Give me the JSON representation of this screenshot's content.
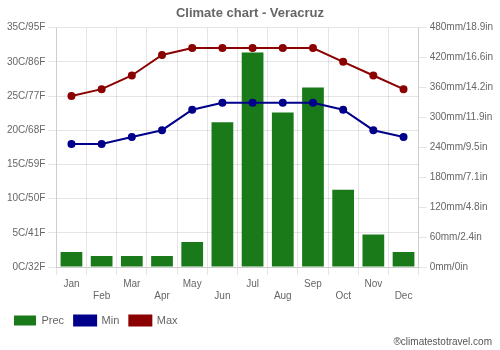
{
  "chart_data": {
    "type": "bar",
    "title": "Climate chart - Veracruz",
    "categories": [
      "Jan",
      "Feb",
      "Mar",
      "Apr",
      "May",
      "Jun",
      "Jul",
      "Aug",
      "Sep",
      "Oct",
      "Nov",
      "Dec"
    ],
    "series": [
      {
        "name": "Prec",
        "type": "bar",
        "color": "#1a7a1a",
        "axis": "y2",
        "values": [
          30,
          22,
          22,
          22,
          50,
          290,
          430,
          310,
          360,
          155,
          65,
          30
        ]
      },
      {
        "name": "Min",
        "type": "line",
        "color": "#00008B",
        "marker": "circle",
        "values": [
          18,
          18,
          19,
          20,
          23,
          24,
          24,
          24,
          24,
          23,
          20,
          19
        ]
      },
      {
        "name": "Max",
        "type": "line",
        "color": "#8B0000",
        "marker": "circle",
        "values": [
          25,
          26,
          28,
          31,
          32,
          32,
          32,
          32,
          32,
          30,
          28,
          26
        ]
      }
    ],
    "ylim": [
      0,
      35
    ],
    "yticks": [
      {
        "value": 0,
        "label": "0C/32F"
      },
      {
        "value": 5,
        "label": "5C/41F"
      },
      {
        "value": 10,
        "label": "10C/50F"
      },
      {
        "value": 15,
        "label": "15C/59F"
      },
      {
        "value": 20,
        "label": "20C/68F"
      },
      {
        "value": 25,
        "label": "25C/77F"
      },
      {
        "value": 30,
        "label": "30C/86F"
      },
      {
        "value": 35,
        "label": "35C/95F"
      }
    ],
    "y2lim": [
      0,
      480
    ],
    "y2ticks": [
      {
        "value": 0,
        "label": "0mm/0in"
      },
      {
        "value": 60,
        "label": "60mm/2.4in"
      },
      {
        "value": 120,
        "label": "120mm/4.8in"
      },
      {
        "value": 180,
        "label": "180mm/7.1in"
      },
      {
        "value": 240,
        "label": "240mm/9.5in"
      },
      {
        "value": 300,
        "label": "300mm/11.9in"
      },
      {
        "value": 360,
        "label": "360mm/14.2in"
      },
      {
        "value": 420,
        "label": "420mm/16.6in"
      },
      {
        "value": 480,
        "label": "480mm/18.9in"
      }
    ],
    "grid": true,
    "legend": "bottom",
    "annotations": [
      "®climatestotravel.com"
    ]
  }
}
